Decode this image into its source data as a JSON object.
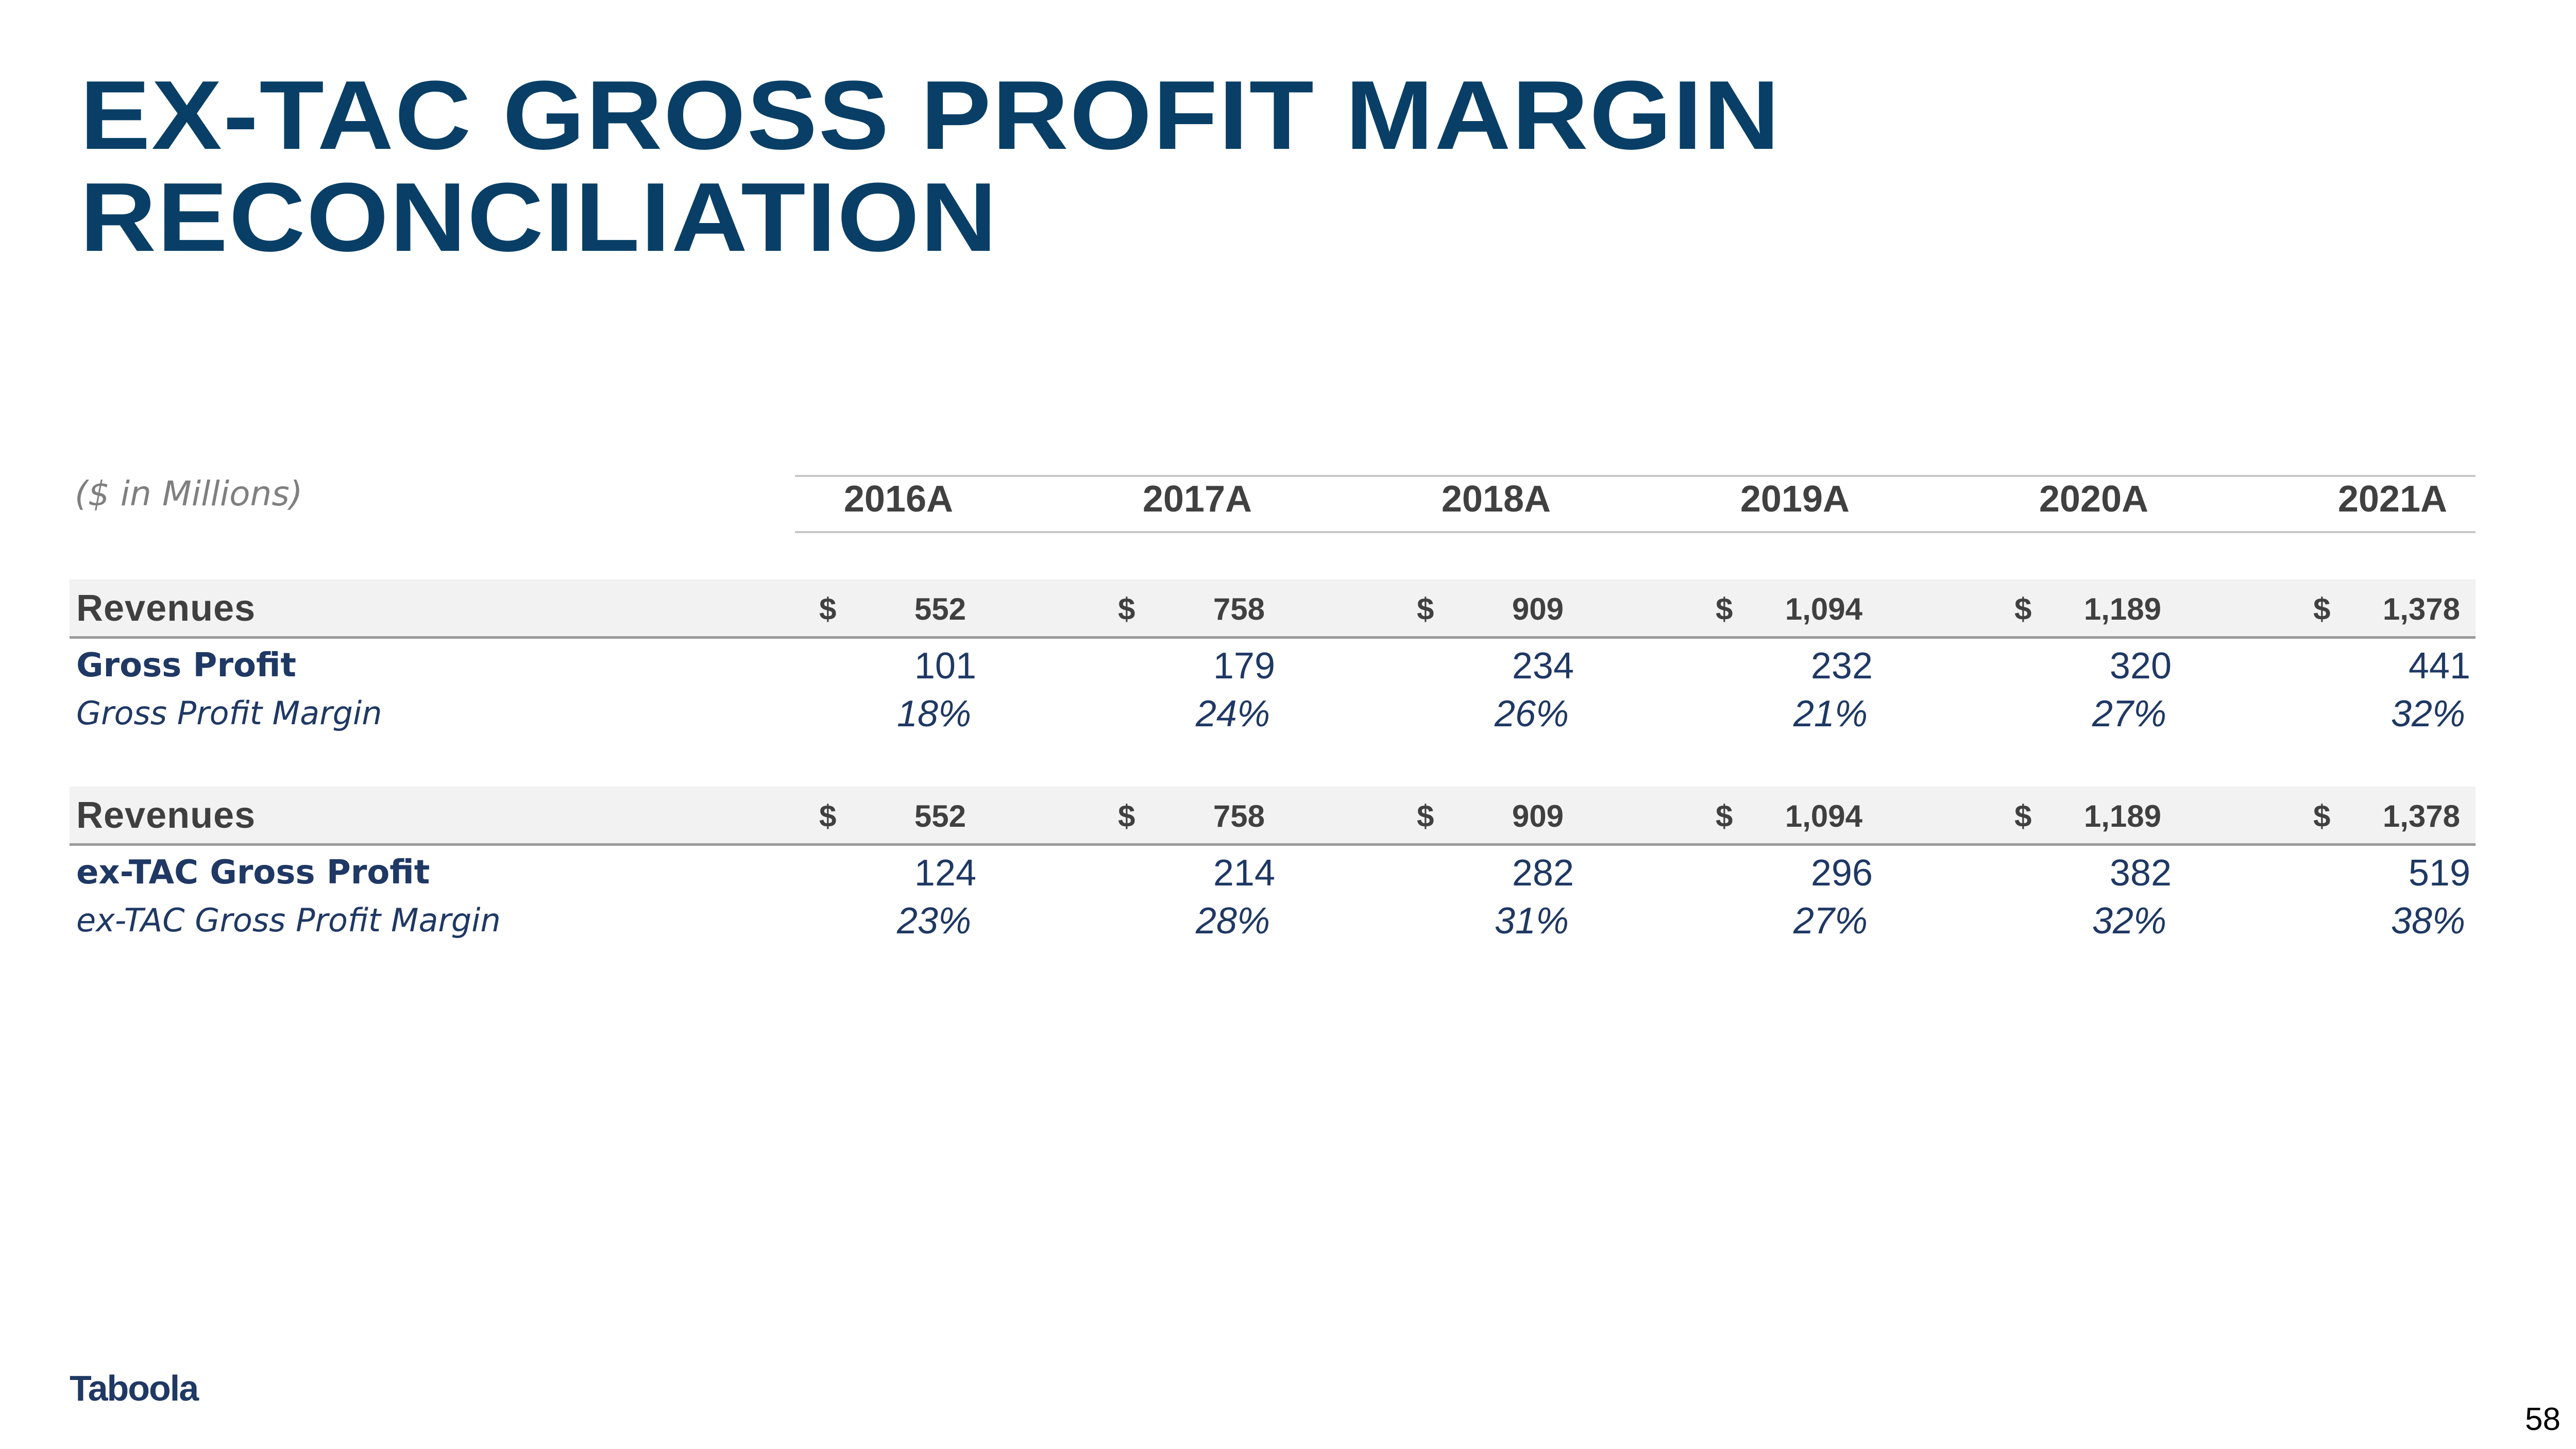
{
  "title": "EX-TAC GROSS PROFIT MARGIN RECONCILIATION",
  "units_label": "($ in Millions)",
  "years": [
    "2016A",
    "2017A",
    "2018A",
    "2019A",
    "2020A",
    "2021A"
  ],
  "currency_symbol": "$",
  "section1": {
    "revenues_label": "Revenues",
    "revenues": [
      "552",
      "758",
      "909",
      "1,094",
      "1,189",
      "1,378"
    ],
    "gross_profit_label": "Gross Profit",
    "gross_profit": [
      "101",
      "179",
      "234",
      "232",
      "320",
      "441"
    ],
    "margin_label": "Gross Profit Margin",
    "margin": [
      "18%",
      "24%",
      "26%",
      "21%",
      "27%",
      "32%"
    ]
  },
  "section2": {
    "revenues_label": "Revenues",
    "revenues": [
      "552",
      "758",
      "909",
      "1,094",
      "1,189",
      "1,378"
    ],
    "gross_profit_label": "ex-TAC Gross Profit",
    "gross_profit": [
      "124",
      "214",
      "282",
      "296",
      "382",
      "519"
    ],
    "margin_label": "ex-TAC Gross Profit Margin",
    "margin": [
      "23%",
      "28%",
      "31%",
      "27%",
      "32%",
      "38%"
    ]
  },
  "footer": {
    "logo_text": "Taboola",
    "page_number": "58"
  }
}
